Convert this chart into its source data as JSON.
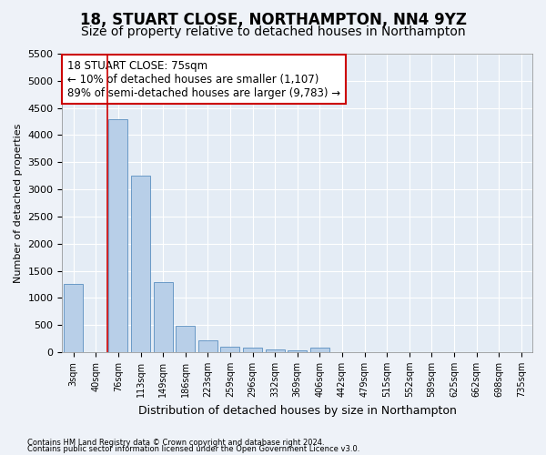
{
  "title1": "18, STUART CLOSE, NORTHAMPTON, NN4 9YZ",
  "title2": "Size of property relative to detached houses in Northampton",
  "xlabel": "Distribution of detached houses by size in Northampton",
  "ylabel": "Number of detached properties",
  "categories": [
    "3sqm",
    "40sqm",
    "76sqm",
    "113sqm",
    "149sqm",
    "186sqm",
    "223sqm",
    "259sqm",
    "296sqm",
    "332sqm",
    "369sqm",
    "406sqm",
    "442sqm",
    "479sqm",
    "515sqm",
    "552sqm",
    "589sqm",
    "625sqm",
    "662sqm",
    "698sqm",
    "735sqm"
  ],
  "values": [
    1250,
    0,
    4300,
    3250,
    1290,
    480,
    220,
    95,
    75,
    55,
    40,
    75,
    0,
    0,
    0,
    0,
    0,
    0,
    0,
    0,
    0
  ],
  "bar_color": "#b8cfe8",
  "bar_edge_color": "#5a8fc0",
  "vline_color": "#cc0000",
  "annotation_text": "18 STUART CLOSE: 75sqm\n← 10% of detached houses are smaller (1,107)\n89% of semi-detached houses are larger (9,783) →",
  "annotation_box_color": "#ffffff",
  "annotation_box_edge": "#cc0000",
  "ylim_max": 5500,
  "yticks": [
    0,
    500,
    1000,
    1500,
    2000,
    2500,
    3000,
    3500,
    4000,
    4500,
    5000,
    5500
  ],
  "footer1": "Contains HM Land Registry data © Crown copyright and database right 2024.",
  "footer2": "Contains public sector information licensed under the Open Government Licence v3.0.",
  "bg_color": "#eef2f8",
  "plot_bg_color": "#e4ecf5",
  "grid_color": "#ffffff",
  "title1_fontsize": 12,
  "title2_fontsize": 10,
  "vline_x_idx": 2
}
